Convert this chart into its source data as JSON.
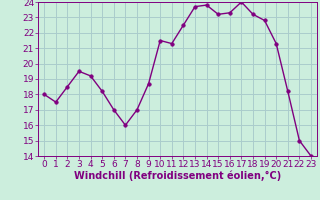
{
  "x": [
    0,
    1,
    2,
    3,
    4,
    5,
    6,
    7,
    8,
    9,
    10,
    11,
    12,
    13,
    14,
    15,
    16,
    17,
    18,
    19,
    20,
    21,
    22,
    23
  ],
  "y": [
    18.0,
    17.5,
    18.5,
    19.5,
    19.2,
    18.2,
    17.0,
    16.0,
    17.0,
    18.7,
    21.5,
    21.3,
    22.5,
    23.7,
    23.8,
    23.2,
    23.3,
    24.0,
    23.2,
    22.8,
    21.3,
    18.2,
    15.0,
    14.0
  ],
  "line_color": "#800080",
  "marker_color": "#800080",
  "bg_color": "#cceedd",
  "grid_color": "#aacccc",
  "xlabel": "Windchill (Refroidissement éolien,°C)",
  "xlabel_color": "#800080",
  "tick_color": "#800080",
  "ylim": [
    14,
    24
  ],
  "xlim_min": -0.5,
  "xlim_max": 23.5,
  "yticks": [
    14,
    15,
    16,
    17,
    18,
    19,
    20,
    21,
    22,
    23,
    24
  ],
  "xticks": [
    0,
    1,
    2,
    3,
    4,
    5,
    6,
    7,
    8,
    9,
    10,
    11,
    12,
    13,
    14,
    15,
    16,
    17,
    18,
    19,
    20,
    21,
    22,
    23
  ],
  "font_size": 6.5,
  "marker_size": 2.5,
  "line_width": 1.0
}
